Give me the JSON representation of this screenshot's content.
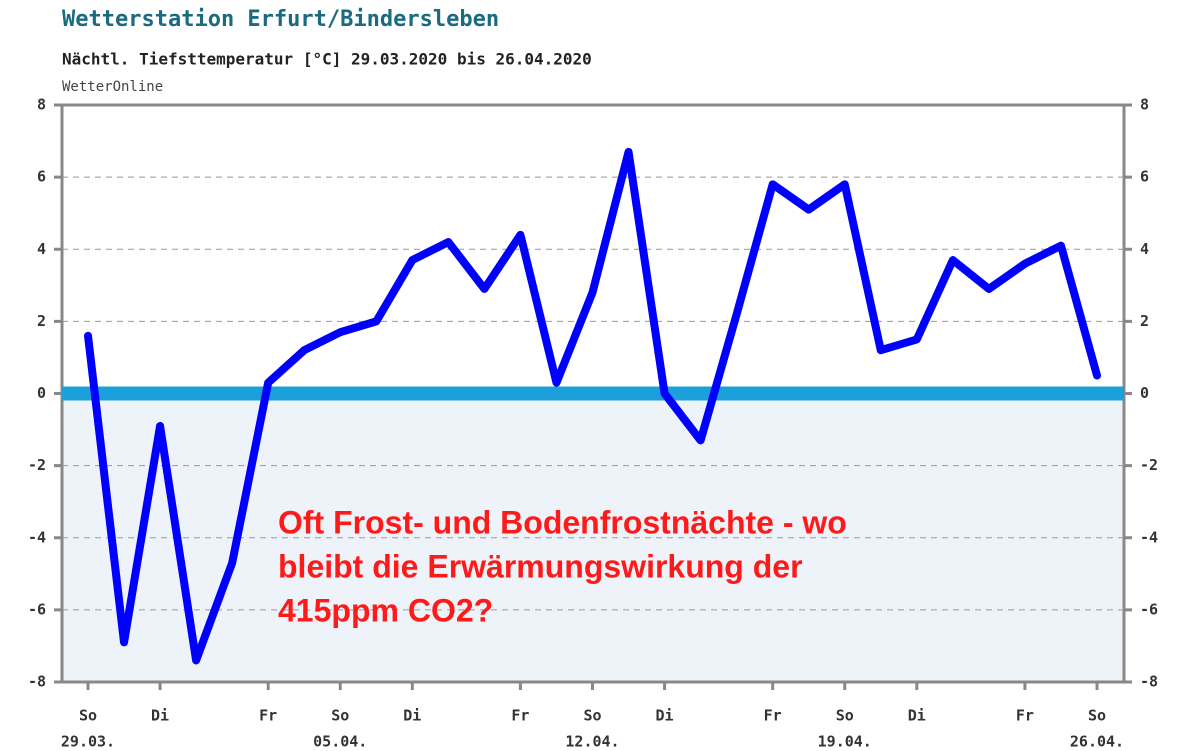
{
  "chart_data": {
    "type": "line",
    "title": "Wetterstation Erfurt/Bindersleben",
    "subtitle": "Nächtl. Tiefsttemperatur [°C] 29.03.2020 bis 26.04.2020",
    "source": "WetterOnline",
    "annotation": [
      "Oft Frost- und Bodenfrostnächte - wo",
      "bleibt die Erwärmungswirkung der",
      "415ppm CO2?"
    ],
    "categories": [
      "So",
      null,
      "Di",
      null,
      null,
      "Fr",
      null,
      "So",
      null,
      "Di",
      null,
      null,
      "Fr",
      null,
      "So",
      null,
      "Di",
      null,
      null,
      "Fr",
      null,
      "So",
      null,
      "Di",
      null,
      null,
      "Fr",
      null,
      "So"
    ],
    "date_labels": [
      "29.03.",
      null,
      null,
      null,
      null,
      null,
      null,
      "05.04.",
      null,
      null,
      null,
      null,
      null,
      null,
      "12.04.",
      null,
      null,
      null,
      null,
      null,
      null,
      "19.04.",
      null,
      null,
      null,
      null,
      null,
      null,
      "26.04."
    ],
    "series": [
      {
        "name": "Tiefsttemperatur",
        "color": "#0000ff",
        "values": [
          1.6,
          -6.9,
          -0.9,
          -7.4,
          -4.7,
          0.3,
          1.2,
          1.7,
          2.0,
          3.7,
          4.2,
          2.9,
          4.4,
          0.3,
          2.8,
          6.7,
          0.0,
          -1.3,
          2.2,
          5.8,
          5.1,
          5.8,
          1.2,
          1.5,
          3.7,
          2.9,
          3.6,
          4.1,
          0.5
        ]
      }
    ],
    "baseline": 0,
    "baseline_color": "#1ba0dc",
    "ylim": [
      -8,
      8
    ],
    "yticks": [
      -8,
      -6,
      -4,
      -2,
      0,
      2,
      4,
      6,
      8
    ],
    "grid": true
  }
}
